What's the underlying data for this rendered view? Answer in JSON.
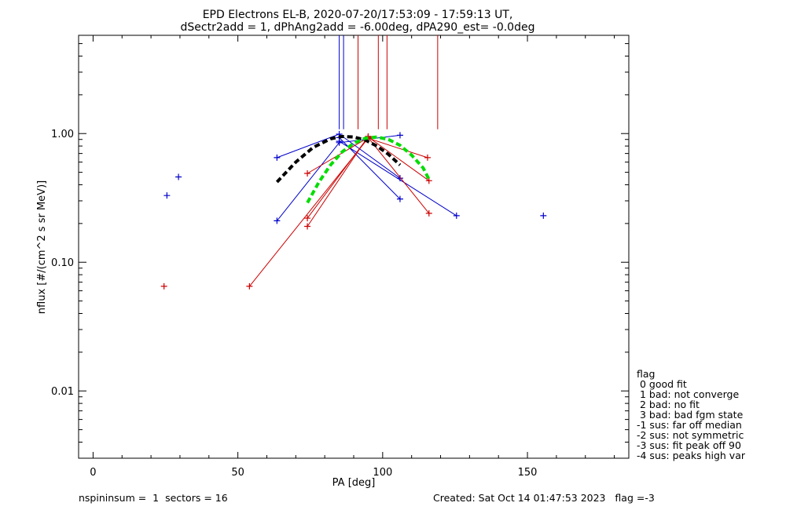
{
  "title_line1": "EPD Electrons EL-B, 2020-07-20/17:53:09 - 17:59:13 UT,",
  "title_line2": "dSectr2add = 1, dPhAng2add = -6.00deg, dPA290_est=  -0.0deg",
  "footer": {
    "left": "nspininsum =  1  sectors = 16",
    "right": "Created: Sat Oct 14 01:47:53 2023   flag =-3"
  },
  "legend": {
    "title": "flag",
    "items": [
      " 0 good fit",
      " 1 bad: not converge",
      " 2 bad: no fit",
      " 3 bad: bad fgm state",
      "-1 sus: far off median",
      "-2 sus: not symmetric",
      "-3 sus: fit peak off 90",
      "-4 sus: peaks high var"
    ]
  },
  "colors": {
    "blue": "#0000cc",
    "red": "#cc0000",
    "black": "#000000",
    "green": "#00dd00"
  },
  "chart_data": {
    "type": "scatter",
    "xlabel": "PA [deg]",
    "ylabel": "nflux [#/(cm^2 s sr MeV)]",
    "xlim": [
      -5,
      185
    ],
    "ylim": [
      0.003,
      5.8
    ],
    "ylog": true,
    "x_ticks": [
      0,
      50,
      100,
      150
    ],
    "x_tick_labels": [
      "0",
      "50",
      "100",
      "150"
    ],
    "y_ticks": [
      0.01,
      0.1,
      1.0
    ],
    "y_tick_labels": [
      "0.01",
      "0.10",
      "1.00"
    ],
    "series": [
      {
        "color": "blue",
        "style": "line+plus",
        "x": [
          63.5,
          85.0,
          106.0
        ],
        "y": [
          0.65,
          0.99,
          0.45
        ]
      },
      {
        "color": "blue",
        "style": "line+plus",
        "x": [
          63.5,
          85.0,
          106.0
        ],
        "y": [
          0.21,
          0.85,
          0.97
        ]
      },
      {
        "color": "blue",
        "style": "line+plus",
        "x": [
          85.0,
          106.0
        ],
        "y": [
          0.93,
          0.31
        ]
      },
      {
        "color": "blue",
        "style": "line+plus",
        "x": [
          85.0,
          125.5
        ],
        "y": [
          0.87,
          0.23
        ]
      },
      {
        "color": "red",
        "style": "line+plus",
        "x": [
          74.0,
          95.0,
          116.0
        ],
        "y": [
          0.49,
          0.93,
          0.24
        ]
      },
      {
        "color": "red",
        "style": "line+plus",
        "x": [
          74.0,
          95.0,
          116.0
        ],
        "y": [
          0.22,
          0.94,
          0.43
        ]
      },
      {
        "color": "red",
        "style": "line+plus",
        "x": [
          74.0,
          95.0
        ],
        "y": [
          0.19,
          0.95
        ]
      },
      {
        "color": "red",
        "style": "line+plus",
        "x": [
          54.0,
          95.0,
          115.5
        ],
        "y": [
          0.065,
          0.92,
          0.65
        ]
      },
      {
        "color": "blue",
        "style": "plus",
        "x": [
          25.5,
          29.5,
          155.5
        ],
        "y": [
          0.33,
          0.46,
          0.23
        ]
      },
      {
        "color": "red",
        "style": "plus",
        "x": [
          24.5
        ],
        "y": [
          0.065
        ]
      },
      {
        "color": "black",
        "style": "dashed-fit",
        "x": [
          63.5,
          70,
          76,
          82,
          86,
          90,
          94,
          98,
          102,
          106
        ],
        "y": [
          0.42,
          0.6,
          0.78,
          0.91,
          0.95,
          0.94,
          0.89,
          0.8,
          0.69,
          0.57
        ]
      },
      {
        "color": "green",
        "style": "dashed-fit",
        "x": [
          74,
          78,
          82,
          86,
          90,
          94,
          98,
          102,
          106,
          110,
          114,
          116
        ],
        "y": [
          0.29,
          0.42,
          0.57,
          0.72,
          0.84,
          0.92,
          0.94,
          0.9,
          0.81,
          0.68,
          0.54,
          0.44
        ]
      }
    ],
    "vertical_markers": [
      {
        "color": "blue",
        "x": 85.0,
        "y_from": 1.08
      },
      {
        "color": "blue",
        "x": 86.5,
        "y_from": 1.08
      },
      {
        "color": "red",
        "x": 91.5,
        "y_from": 1.08
      },
      {
        "color": "red",
        "x": 98.5,
        "y_from": 1.08
      },
      {
        "color": "red",
        "x": 101.5,
        "y_from": 1.08
      },
      {
        "color": "red",
        "x": 119.0,
        "y_from": 1.08
      }
    ]
  }
}
